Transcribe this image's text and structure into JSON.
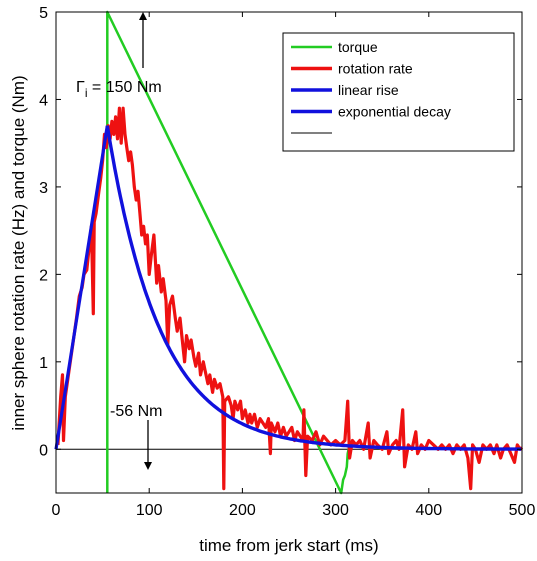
{
  "chart_data": {
    "type": "line",
    "xlabel": "time from jerk start (ms)",
    "ylabel": "inner sphere rotation rate (Hz) and torque (Nm)",
    "xlim": [
      0,
      500
    ],
    "ylim": [
      -0.5,
      5
    ],
    "x_ticks": [
      "0",
      "100",
      "200",
      "300",
      "400",
      "500"
    ],
    "y_ticks": [
      "0",
      "1",
      "2",
      "3",
      "4",
      "5"
    ],
    "grid": false,
    "legend_position": "top-right",
    "series": [
      {
        "name": "torque",
        "color": "#22cc22",
        "points": [
          [
            55,
            -0.5
          ],
          [
            55,
            5
          ],
          [
            306,
            -0.5
          ],
          [
            308,
            -0.35
          ],
          [
            310,
            -0.3
          ],
          [
            312,
            -0.2
          ],
          [
            313,
            -0.05
          ],
          [
            314,
            0.0
          ],
          [
            315,
            0.05
          ]
        ]
      },
      {
        "name": "rotation rate",
        "color": "#ee1111",
        "points": [
          [
            2,
            0.05
          ],
          [
            5,
            0.6
          ],
          [
            7,
            0.85
          ],
          [
            8,
            0.1
          ],
          [
            10,
            0.6
          ],
          [
            14,
            0.9
          ],
          [
            18,
            1.2
          ],
          [
            22,
            1.5
          ],
          [
            25,
            1.75
          ],
          [
            28,
            1.85
          ],
          [
            30,
            2.0
          ],
          [
            33,
            2.05
          ],
          [
            35,
            2.25
          ],
          [
            38,
            2.55
          ],
          [
            40,
            1.55
          ],
          [
            41,
            2.6
          ],
          [
            43,
            2.7
          ],
          [
            46,
            2.95
          ],
          [
            48,
            3.1
          ],
          [
            50,
            3.3
          ],
          [
            52,
            3.6
          ],
          [
            54,
            3.45
          ],
          [
            56,
            3.7
          ],
          [
            58,
            3.55
          ],
          [
            60,
            3.75
          ],
          [
            62,
            3.6
          ],
          [
            64,
            3.8
          ],
          [
            66,
            3.55
          ],
          [
            68,
            3.9
          ],
          [
            70,
            3.5
          ],
          [
            72,
            3.9
          ],
          [
            74,
            3.6
          ],
          [
            76,
            3.45
          ],
          [
            78,
            3.3
          ],
          [
            80,
            3.4
          ],
          [
            82,
            3.25
          ],
          [
            84,
            3.0
          ],
          [
            86,
            2.85
          ],
          [
            88,
            2.95
          ],
          [
            90,
            2.7
          ],
          [
            92,
            2.45
          ],
          [
            94,
            2.55
          ],
          [
            96,
            2.35
          ],
          [
            98,
            2.45
          ],
          [
            100,
            2.0
          ],
          [
            102,
            2.2
          ],
          [
            105,
            2.45
          ],
          [
            108,
            1.9
          ],
          [
            110,
            2.1
          ],
          [
            113,
            1.8
          ],
          [
            115,
            1.95
          ],
          [
            118,
            1.7
          ],
          [
            120,
            1.2
          ],
          [
            122,
            1.65
          ],
          [
            125,
            1.75
          ],
          [
            128,
            1.5
          ],
          [
            130,
            1.35
          ],
          [
            133,
            1.5
          ],
          [
            135,
            1.3
          ],
          [
            138,
            1.0
          ],
          [
            140,
            1.3
          ],
          [
            143,
            1.15
          ],
          [
            145,
            1.25
          ],
          [
            148,
            1.05
          ],
          [
            150,
            0.95
          ],
          [
            153,
            1.1
          ],
          [
            155,
            0.85
          ],
          [
            158,
            1.0
          ],
          [
            160,
            0.9
          ],
          [
            163,
            0.75
          ],
          [
            165,
            0.85
          ],
          [
            168,
            0.65
          ],
          [
            170,
            0.8
          ],
          [
            173,
            0.7
          ],
          [
            176,
            0.75
          ],
          [
            179,
            0.6
          ],
          [
            180,
            -0.45
          ],
          [
            181,
            0.55
          ],
          [
            185,
            0.6
          ],
          [
            188,
            0.5
          ],
          [
            190,
            0.35
          ],
          [
            192,
            0.55
          ],
          [
            195,
            0.45
          ],
          [
            198,
            0.55
          ],
          [
            200,
            0.35
          ],
          [
            203,
            0.45
          ],
          [
            206,
            0.3
          ],
          [
            208,
            0.4
          ],
          [
            210,
            0.3
          ],
          [
            213,
            0.4
          ],
          [
            216,
            0.25
          ],
          [
            219,
            0.35
          ],
          [
            222,
            0.3
          ],
          [
            225,
            0.25
          ],
          [
            228,
            0.35
          ],
          [
            230,
            -0.05
          ],
          [
            231,
            0.3
          ],
          [
            235,
            0.2
          ],
          [
            238,
            0.3
          ],
          [
            241,
            0.15
          ],
          [
            244,
            0.25
          ],
          [
            247,
            0.15
          ],
          [
            250,
            0.2
          ],
          [
            253,
            0.25
          ],
          [
            256,
            0.1
          ],
          [
            259,
            0.2
          ],
          [
            262,
            0.15
          ],
          [
            265,
            0.1
          ],
          [
            266,
            0.45
          ],
          [
            268,
            -0.3
          ],
          [
            270,
            0.15
          ],
          [
            275,
            0.1
          ],
          [
            279,
            0.2
          ],
          [
            283,
            0.05
          ],
          [
            287,
            0.15
          ],
          [
            291,
            0.1
          ],
          [
            295,
            0.05
          ],
          [
            300,
            0.1
          ],
          [
            305,
            0.05
          ],
          [
            310,
            0.1
          ],
          [
            313,
            0.55
          ],
          [
            315,
            -0.1
          ],
          [
            318,
            0.1
          ],
          [
            322,
            0.05
          ],
          [
            326,
            0.1
          ],
          [
            330,
            0.0
          ],
          [
            335,
            0.3
          ],
          [
            337,
            -0.1
          ],
          [
            341,
            0.1
          ],
          [
            345,
            0.05
          ],
          [
            350,
            0.0
          ],
          [
            355,
            0.2
          ],
          [
            357,
            -0.05
          ],
          [
            361,
            0.05
          ],
          [
            365,
            0.1
          ],
          [
            368,
            0.0
          ],
          [
            372,
            0.45
          ],
          [
            374,
            -0.2
          ],
          [
            378,
            0.05
          ],
          [
            382,
            0.0
          ],
          [
            386,
            0.2
          ],
          [
            388,
            -0.05
          ],
          [
            392,
            0.05
          ],
          [
            396,
            0.0
          ],
          [
            400,
            0.1
          ],
          [
            405,
            0.05
          ],
          [
            410,
            0.0
          ],
          [
            414,
            0.05
          ],
          [
            418,
            0.0
          ],
          [
            422,
            0.05
          ],
          [
            426,
            -0.05
          ],
          [
            430,
            0.05
          ],
          [
            434,
            0.0
          ],
          [
            438,
            0.05
          ],
          [
            442,
            -0.1
          ],
          [
            445,
            -0.45
          ],
          [
            447,
            0.05
          ],
          [
            450,
            0.0
          ],
          [
            454,
            -0.15
          ],
          [
            458,
            0.05
          ],
          [
            462,
            0.0
          ],
          [
            466,
            0.05
          ],
          [
            470,
            -0.05
          ],
          [
            473,
            0.05
          ],
          [
            477,
            -0.1
          ],
          [
            480,
            0.0
          ],
          [
            484,
            0.05
          ],
          [
            488,
            -0.05
          ],
          [
            492,
            -0.15
          ],
          [
            495,
            0.05
          ],
          [
            498,
            0.0
          ],
          [
            500,
            0.02
          ]
        ]
      },
      {
        "name": "linear rise",
        "color": "#1111dd",
        "points": [
          [
            0,
            0.0
          ],
          [
            55,
            3.7
          ]
        ]
      },
      {
        "name": "exponential decay",
        "color": "#1111dd",
        "fit": {
          "amplitude": 3.7,
          "t0": 55,
          "tau": 57,
          "x_start": 55,
          "x_end": 500
        }
      },
      {
        "name": "",
        "color": "#000000",
        "points": [
          [
            0,
            0
          ],
          [
            500,
            0
          ]
        ]
      }
    ],
    "annotations": [
      {
        "text_main": "Γ",
        "text_sub": "i",
        "text_rest": " = 150 Nm"
      },
      {
        "text": "-56 Nm"
      }
    ]
  }
}
